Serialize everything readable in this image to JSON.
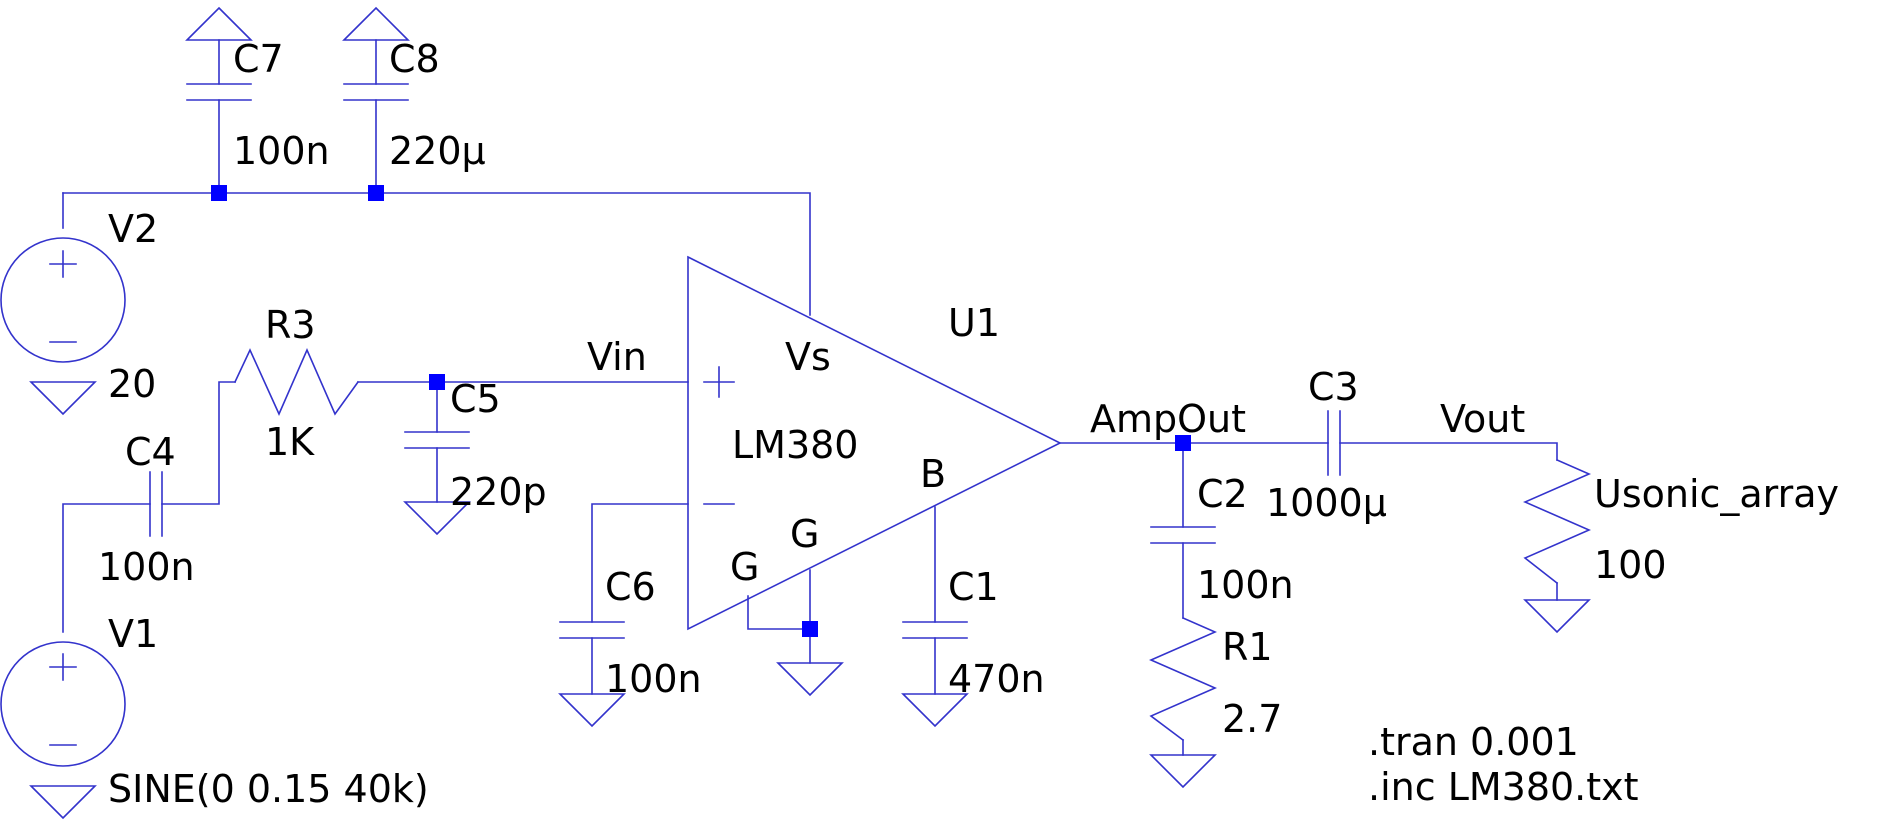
{
  "labels": {
    "c7_name": "C7",
    "c7_value": "100n",
    "c8_name": "C8",
    "c8_value": "220µ",
    "v2_name": "V2",
    "v2_value": "20",
    "r3_name": "R3",
    "r3_value": "1K",
    "c4_name": "C4",
    "c4_value": "100n",
    "v1_name": "V1",
    "v1_value": "SINE(0 0.15 40k)",
    "c5_name": "C5",
    "c5_value": "220p",
    "net_vin": "Vin",
    "pin_vs": "Vs",
    "u1_name": "U1",
    "u1_part": "LM380",
    "pin_b": "B",
    "pin_g1": "G",
    "pin_g2": "G",
    "c6_name": "C6",
    "c6_value": "100n",
    "c1_name": "C1",
    "c1_value": "470n",
    "net_ampout": "AmpOut",
    "c2_name": "C2",
    "c2_value": "100n",
    "r1_name": "R1",
    "r1_value": "2.7",
    "c3_name": "C3",
    "c3_value": "1000µ",
    "net_vout": "Vout",
    "load_name": "Usonic_array",
    "load_value": "100",
    "directive_tran": ".tran 0.001",
    "directive_inc": ".inc LM380.txt"
  },
  "colors": {
    "wire": "#3333cc",
    "junction": "#0000ff",
    "text": "#000000",
    "background": "#ffffff"
  }
}
